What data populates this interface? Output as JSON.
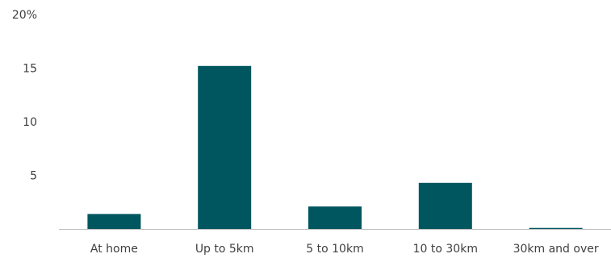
{
  "chart_data": {
    "type": "bar",
    "categories": [
      "At home",
      "Up to 5km",
      "5 to 10km",
      "10 to 30km",
      "30km and over"
    ],
    "values": [
      1.4,
      15.2,
      2.1,
      4.3,
      0.1
    ],
    "title": "",
    "xlabel": "",
    "ylabel": "",
    "ylim": [
      0,
      20
    ],
    "yticks": [
      5,
      10,
      15
    ],
    "ytick_labels": [
      "5",
      "10",
      "15"
    ],
    "y_top_label": "20%",
    "grid": false,
    "legend": "none",
    "bar_color": "#00565F",
    "axis_color": "#BFBFBF",
    "text_color": "#404040"
  }
}
